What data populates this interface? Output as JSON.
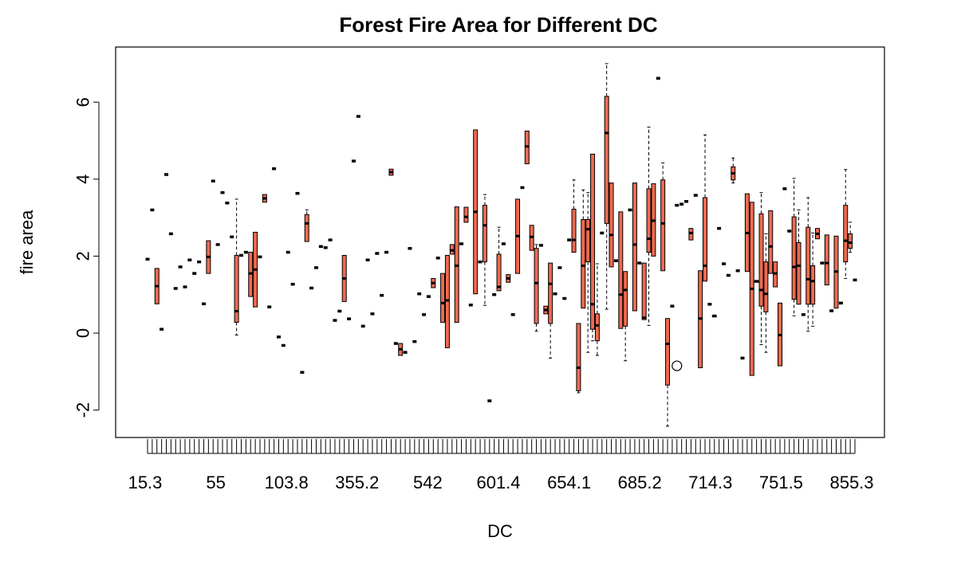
{
  "chart_data": {
    "type": "box",
    "title": "Forest Fire Area for Different DC",
    "xlabel": "DC",
    "ylabel": "fire area",
    "ylim": [
      -2.7,
      7.2
    ],
    "y_ticks": [
      -2,
      0,
      2,
      4,
      6
    ],
    "x_labeled_ticks": [
      "15.3",
      "55",
      "103.8",
      "355.2",
      "542",
      "601.4",
      "654.1",
      "685.2",
      "714.3",
      "751.5",
      "855.3"
    ],
    "box_fill": "#ee6a50",
    "grid": false,
    "legend": "none",
    "groups": [
      {
        "med": 1.92
      },
      {
        "med": 3.2
      },
      {
        "min": 0.76,
        "q1": 0.76,
        "med": 1.22,
        "q3": 1.68,
        "max": 1.68
      },
      {
        "med": 0.1
      },
      {
        "med": 4.12
      },
      {
        "med": 2.58
      },
      {
        "med": 1.16
      },
      {
        "med": 1.72
      },
      {
        "med": 1.2
      },
      {
        "med": 1.9
      },
      {
        "med": 1.55
      },
      {
        "med": 1.85
      },
      {
        "med": 0.76
      },
      {
        "min": 1.55,
        "q1": 1.55,
        "med": 1.98,
        "q3": 2.4,
        "max": 2.4
      },
      {
        "med": 3.95
      },
      {
        "med": 2.3
      },
      {
        "med": 3.65
      },
      {
        "med": 3.38
      },
      {
        "med": 2.5
      },
      {
        "min": -0.05,
        "q1": 0.28,
        "med": 0.57,
        "q3": 2.02,
        "max": 3.48
      },
      {
        "med": 2.02
      },
      {
        "med": 2.1
      },
      {
        "min": 0.95,
        "q1": 0.95,
        "med": 1.55,
        "q3": 2.1,
        "max": 2.1
      },
      {
        "min": 0.68,
        "q1": 0.68,
        "med": 1.65,
        "q3": 2.62,
        "max": 2.62
      },
      {
        "med": 1.98
      },
      {
        "min": 3.4,
        "q1": 3.4,
        "med": 3.5,
        "q3": 3.6,
        "max": 3.6
      },
      {
        "med": 0.68
      },
      {
        "med": 4.27
      },
      {
        "med": -0.1
      },
      {
        "med": -0.32
      },
      {
        "med": 2.1
      },
      {
        "med": 1.27
      },
      {
        "med": 3.63
      },
      {
        "med": -1.02
      },
      {
        "min": 2.38,
        "q1": 2.38,
        "med": 2.85,
        "q3": 3.08,
        "max": 3.2
      },
      {
        "med": 1.17
      },
      {
        "med": 1.7
      },
      {
        "med": 2.25
      },
      {
        "med": 2.22
      },
      {
        "med": 2.42
      },
      {
        "med": 0.33
      },
      {
        "med": 0.57
      },
      {
        "min": 0.82,
        "q1": 0.82,
        "med": 1.42,
        "q3": 2.02,
        "max": 2.02
      },
      {
        "med": 0.37
      },
      {
        "med": 4.47
      },
      {
        "med": 5.63
      },
      {
        "med": 0.18
      },
      {
        "med": 1.9
      },
      {
        "med": 0.5
      },
      {
        "med": 2.07
      },
      {
        "med": 0.98
      },
      {
        "med": 2.1
      },
      {
        "min": 4.1,
        "q1": 4.1,
        "med": 4.18,
        "q3": 4.26,
        "max": 4.26
      },
      {
        "med": -0.27
      },
      {
        "min": -0.58,
        "q1": -0.58,
        "med": -0.42,
        "q3": -0.27,
        "max": -0.27
      },
      {
        "med": -0.5
      },
      {
        "med": 2.2
      },
      {
        "med": -0.22
      },
      {
        "med": 1.02
      },
      {
        "med": 0.48
      },
      {
        "med": 0.95
      },
      {
        "min": 1.18,
        "q1": 1.18,
        "med": 1.3,
        "q3": 1.42,
        "max": 1.42
      },
      {
        "med": 1.95
      },
      {
        "min": 0.28,
        "q1": 0.28,
        "med": 0.78,
        "q3": 1.55,
        "max": 1.55
      },
      {
        "min": -0.38,
        "q1": -0.38,
        "med": 0.85,
        "q3": 2.02,
        "max": 2.02
      },
      {
        "min": 2.05,
        "q1": 2.05,
        "med": 2.15,
        "q3": 2.3,
        "max": 2.3
      },
      {
        "min": 0.28,
        "q1": 0.28,
        "med": 1.75,
        "q3": 3.28,
        "max": 3.28
      },
      {
        "med": 2.32
      },
      {
        "min": 2.88,
        "q1": 2.88,
        "med": 3.02,
        "q3": 3.27,
        "max": 3.27
      },
      {
        "med": 0.73
      },
      {
        "min": 1.02,
        "q1": 1.02,
        "med": 3.15,
        "q3": 5.28,
        "max": 5.28
      },
      {
        "med": 1.85
      },
      {
        "min": 0.72,
        "q1": 1.85,
        "med": 2.8,
        "q3": 3.32,
        "max": 3.6
      },
      {
        "med": -1.76
      },
      {
        "med": 1.0
      },
      {
        "min": 1.1,
        "q1": 1.1,
        "med": 1.2,
        "q3": 2.05,
        "max": 2.75
      },
      {
        "med": 2.32
      },
      {
        "min": 1.32,
        "q1": 1.32,
        "med": 1.42,
        "q3": 1.52,
        "max": 1.52
      },
      {
        "med": 0.48
      },
      {
        "min": 1.55,
        "q1": 1.55,
        "med": 2.52,
        "q3": 3.48,
        "max": 3.48
      },
      {
        "med": 3.78
      },
      {
        "min": 4.4,
        "q1": 4.4,
        "med": 4.85,
        "q3": 5.25,
        "max": 5.25
      },
      {
        "min": 2.15,
        "q1": 2.15,
        "med": 2.5,
        "q3": 2.8,
        "max": 2.8
      },
      {
        "min": 0.05,
        "q1": 0.25,
        "med": 1.3,
        "q3": 2.2,
        "max": 2.3
      },
      {
        "med": 2.28
      },
      {
        "min": 0.5,
        "q1": 0.5,
        "med": 0.6,
        "q3": 0.7,
        "max": 0.7
      },
      {
        "min": -0.65,
        "q1": 0.25,
        "med": 1.28,
        "q3": 1.82,
        "max": 1.82
      },
      {
        "med": 1.02
      },
      {
        "med": 1.7
      },
      {
        "med": 0.9
      },
      {
        "med": 2.42
      },
      {
        "min": 2.1,
        "q1": 2.1,
        "med": 2.42,
        "q3": 3.22,
        "max": 3.98
      },
      {
        "min": -1.55,
        "q1": -1.5,
        "med": -0.9,
        "q3": 0.25,
        "max": 0.25
      },
      {
        "min": 0.65,
        "q1": 0.65,
        "med": 1.75,
        "q3": 2.95,
        "max": 3.72
      },
      {
        "min": -0.5,
        "q1": 1.85,
        "med": 2.7,
        "q3": 2.95,
        "max": 3.65
      },
      {
        "min": -0.2,
        "q1": 0.1,
        "med": 0.75,
        "q3": 4.65,
        "max": 4.65
      },
      {
        "min": -0.58,
        "q1": -0.2,
        "med": 0.2,
        "q3": 0.5,
        "max": 1.8
      },
      {
        "med": 2.6
      },
      {
        "min": 0.62,
        "q1": 2.85,
        "med": 5.2,
        "q3": 6.15,
        "max": 7.0
      },
      {
        "min": 1.72,
        "q1": 1.72,
        "med": 2.55,
        "q3": 3.9,
        "max": 3.9
      },
      {
        "med": 1.88
      },
      {
        "min": 0.12,
        "q1": 0.12,
        "med": 1.0,
        "q3": 3.15,
        "max": 3.15
      },
      {
        "min": -0.72,
        "q1": 0.18,
        "med": 1.12,
        "q3": 1.6,
        "max": 1.6
      },
      {
        "med": 3.2
      },
      {
        "min": 0.58,
        "q1": 0.58,
        "med": 2.3,
        "q3": 3.9,
        "max": 3.9
      },
      {
        "med": 1.82
      },
      {
        "min": 0.35,
        "q1": 0.35,
        "med": 0.4,
        "q3": 1.82,
        "max": 1.82
      },
      {
        "min": 0.2,
        "q1": 2.1,
        "med": 2.45,
        "q3": 3.75,
        "max": 5.35
      },
      {
        "min": 2.0,
        "q1": 2.0,
        "med": 2.92,
        "q3": 3.88,
        "max": 3.88
      },
      {
        "med": 6.62
      },
      {
        "min": 1.62,
        "q1": 1.62,
        "med": 2.85,
        "q3": 3.98,
        "max": 4.42
      },
      {
        "min": -2.42,
        "q1": -1.35,
        "med": -0.28,
        "q3": 0.38,
        "max": 0.38
      },
      {
        "med": 0.7
      },
      {
        "med": 3.32
      },
      {
        "med": 3.35
      },
      {
        "med": 3.42
      },
      {
        "min": 2.42,
        "q1": 2.42,
        "med": 2.6,
        "q3": 2.72,
        "max": 2.72
      },
      {
        "med": 3.58
      },
      {
        "min": -0.9,
        "q1": -0.9,
        "med": 0.38,
        "q3": 1.62,
        "max": 1.62
      },
      {
        "min": 1.35,
        "q1": 1.35,
        "med": 1.75,
        "q3": 3.52,
        "max": 5.15
      },
      {
        "med": 0.75
      },
      {
        "min": 0.42,
        "q1": 0.42,
        "med": 0.45,
        "q3": 0.45,
        "max": 0.45
      },
      {
        "med": 2.72
      },
      {
        "med": 1.8
      },
      {
        "med": 1.5
      },
      {
        "min": 3.9,
        "q1": 3.98,
        "med": 4.15,
        "q3": 4.32,
        "max": 4.55
      },
      {
        "med": 1.62
      },
      {
        "med": -0.65
      },
      {
        "min": 1.6,
        "q1": 1.6,
        "med": 2.6,
        "q3": 3.62,
        "max": 3.62
      },
      {
        "min": -1.1,
        "q1": -1.1,
        "med": 1.15,
        "q3": 3.4,
        "max": 3.4
      },
      {
        "min": 1.32,
        "q1": 1.32,
        "med": 1.35,
        "q3": 1.35,
        "max": 1.35
      },
      {
        "min": -0.3,
        "q1": 0.7,
        "med": 1.12,
        "q3": 3.1,
        "max": 3.65
      },
      {
        "min": -0.5,
        "q1": 0.55,
        "med": 1.02,
        "q3": 1.85,
        "max": 2.58
      },
      {
        "min": 1.55,
        "q1": 1.55,
        "med": 2.25,
        "q3": 3.18,
        "max": 3.18
      },
      {
        "min": 1.2,
        "q1": 1.2,
        "med": 1.55,
        "q3": 1.85,
        "max": 1.85
      },
      {
        "min": -0.85,
        "q1": -0.85,
        "med": -0.05,
        "q3": 0.78,
        "max": 0.78
      },
      {
        "med": 3.75
      },
      {
        "med": 2.65
      },
      {
        "min": 0.45,
        "q1": 0.88,
        "med": 1.72,
        "q3": 3.02,
        "max": 4.02
      },
      {
        "min": 0.75,
        "q1": 0.75,
        "med": 1.75,
        "q3": 2.35,
        "max": 3.2
      },
      {
        "med": 0.48
      },
      {
        "min": 0.05,
        "q1": 0.75,
        "med": 1.4,
        "q3": 2.75,
        "max": 3.52
      },
      {
        "min": 0.18,
        "q1": 0.75,
        "med": 1.35,
        "q3": 1.75,
        "max": 2.6
      },
      {
        "min": 2.45,
        "q1": 2.45,
        "med": 2.58,
        "q3": 2.72,
        "max": 2.72
      },
      {
        "med": 1.82
      },
      {
        "min": 1.25,
        "q1": 1.25,
        "med": 1.82,
        "q3": 2.55,
        "max": 2.55
      },
      {
        "med": 0.58
      },
      {
        "min": 0.65,
        "q1": 0.65,
        "med": 1.6,
        "q3": 2.52,
        "max": 2.52
      },
      {
        "med": 0.78
      },
      {
        "min": 1.42,
        "q1": 1.85,
        "med": 2.4,
        "q3": 3.32,
        "max": 4.25
      },
      {
        "min": 2.1,
        "q1": 2.2,
        "med": 2.35,
        "q3": 2.58,
        "max": 2.88
      },
      {
        "med": 1.38
      }
    ],
    "outliers": [
      {
        "group": 113,
        "value": -0.85
      }
    ]
  }
}
